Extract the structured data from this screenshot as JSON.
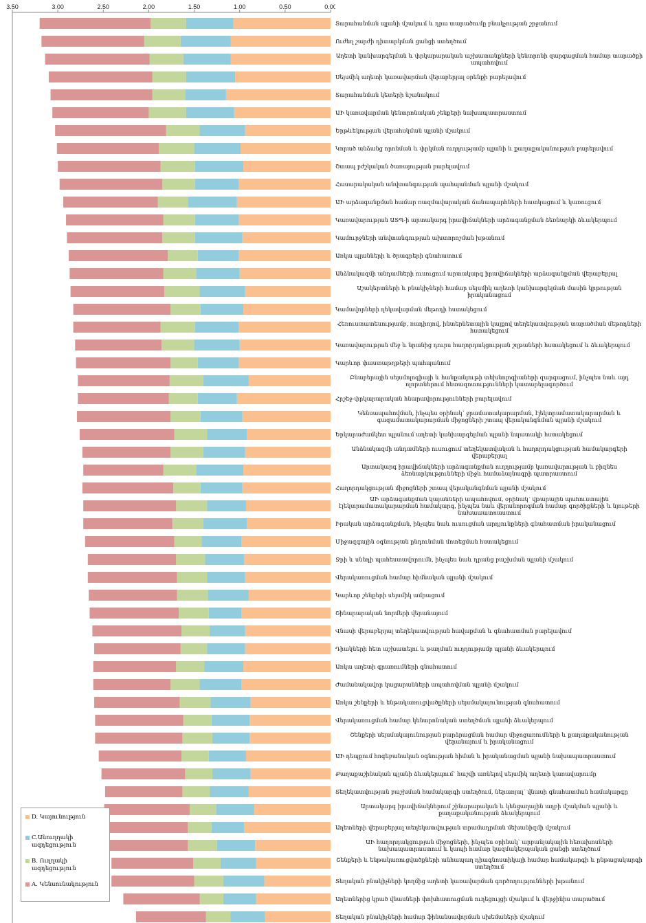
{
  "chart_data": {
    "type": "stacked-barh",
    "categories": [
      "Տարահանման պլանի մշակում և դրա տարածումը բնակչության շրջանում",
      "Ուժեղ շարժի դիտարկման ցանցի ստեղծում",
      "Աղետի կանխարգելման և փրկարարական աշխատանքների կենտրոնի զարգացման համար տարածքի ապահովում",
      "Սեյսմիկ աղետի կառավարման վերաբերյալ օրենքի բարելավում",
      "Տարահանման կետերի նշանակում",
      "ԱԻ կառավարման կենտրոնական շենքերի նախապատրաստում",
      "Երթևեկության վերահսկման պլանի մշակում",
      "Կորած անձանց որոնման և փրկման ուղղությամբ պլանի և քաղաքականության բարելավում",
      "Շտապ բժշկական ծառայության բարելավում",
      "Հասարակական անվտանգության պահպանման պլանի մշակում",
      "ԱԻ արձագանքման համար ռազմավարական ճանապարհների հատկացում և կառուցում",
      "Կառավարության ԱՏՊ-ի արտակարգ իրավիճակների արձագանքման ձեռնարկի ձևակերպում",
      "Կամուրջների անվտանգության ախտորոշման խթանում",
      "Առկա պլանների և ծրագրերի գնահատում",
      "Անձնակազմի անդամների ուսուցում արտակարգ իրավիճակների արձագանքման վերաբերյալ",
      "Աշակերտների և բնակիչների համար սեյսմիկ աղետի կանխարգելման մասին կրթության իրականացում",
      "Կամավորների ղեկավարման մեթոդի հստակեցում",
      "Հեռուստատեսությամբ, ռադիոյով, ինտերնետային կայքով տեղեկատվության տարածման մեթոդների հստակեցում",
      "Կառավարության մեջ և նրանից դուրս հաղորդակցության շղթաների հստակեցում և ձևակերպում",
      "Կարևոր փաստաթղթերի պահպանում",
      "Բնաբերային սեյսմոլոգիայի և հանքանյութի տեխնոլոգիաների զարգացում, ինչպես նաև այդ ոլորտներում հետազոտությունների կատարելագործում",
      "Հրշեջ-փրկարարական հնարավորությունների բարելավում",
      "Կենսապահովման, ինչպես օրինակ՝ ջրամատակարարման, էլեկտրամատակարարման և գազամատակարարման միջոցների շտապ վերականգնման պլանի մշակում",
      "Երկարաժամկետ պլանում աղետի կանխարգելման պլանի նպատակի հստակեցում",
      "Անձնակազմի անդամների ուսուցում տեղեկատվական և հաղորդակցության համակարգերի վերաբերյալ",
      "Արտակարգ իրավիճակների արձագանքման ուղղությամբ կառավարության և բիզնես ձեռնարկությունների միջև համաձայնագրի պատրաստում",
      "Հաղորդակցության միջոցների շտապ վերականգնման պլանի մշակում",
      "ԱԻ արձագանքման կայանների ապահովում, օրինակ՝ վթարային պահուստային էլեկտրամատակարարման համակարգ, ինչպես նաև վերանորոգման համար գործիքների և նյութերի նախապատրաստում",
      "Իրական արձագանքման, ինչպես նաև ուսուցման արդյունքների գնահատման իրականացում",
      "Միջազգային օգնության ընդունման մոտեցման հստակեցում",
      "Ջրի և սննդի պահեստավորումն, ինչպես նաև դրանց բաշխման պլանի մշակում",
      "Վերակառուցման համար հիմնական պլանի մշակում",
      "Կարևոր շենքերի սեյսմիկ ամրացում",
      "Շինարարական նորմերի վերանայում",
      "Վնասի վերաբերյալ տեղեկատվության հավաքման և գնահատման բարելավում",
      "Դիակների հետ աշխատելու և թաղման ուղղությամբ պլանի ձևակերպում",
      "Առկա աղետի գրառումների գնահատում",
      "Ժամանակավոր կացարանների ապահովման պլանի մշակում",
      "Առկա շենքերի և ենթակառուցվածքների սեյսմակայունության գնահատում",
      "Վերակառուցման համար կենտրոնական ստեղծման պլանի ձևակերպում",
      "Շենքերի սեյսմակայունության բարձրացման համար միջոցառումների և քաղաքականության վերանայում և իրականացում",
      "ԱԻ դեպքում հոգեբանական օգնության հիման և իրականացման պլանի նախապատրաստում",
      "Քաղաքաշինական պլանի ձևակերպում՝ հաշվի առնելով սեյսմիկ աղետի կառավարումը",
      "Տեղեկատվության բաշխման համակարգի ստեղծում, ներառյալ՝ վնասի գնահատման համակարգը",
      "Արտակարգ իրավիճակներում շինարարական և կենցաղային աղբի մշակման պլանի և քաղաքականության ձևակերպում",
      "Աղետների վերաբերյալ տեղեկատվության տրամադրման մեխանիզմի մշակում",
      "ԱԻ հաղորդակցության միջոցների, ինչպես օրինակ՝ արբանյակային հեռախոսների նախապատրաստում և կապի համար կազմակերպական ցանցի ստեղծում",
      "Շենքերի և ենթակառուցվածքների անհապաղ դիագնոստիկայի համար համակարգի և ընթացակարգի ստեղծում",
      "Տեղական բնակիչների կողմից աղետի կառավարման գործողությունների խթանում",
      "Աղետներից կրած վնասների փոխհատուցման ուղեցույցի մշակում և վերջինիս տարածում",
      "Տեղական բնակիչների համար ֆինանսավորման սխեմաների մշակում"
    ],
    "series": [
      {
        "name": "D. Կայունություն",
        "color": "#fac090",
        "values": [
          1.07,
          1.1,
          1.1,
          1.05,
          1.15,
          1.06,
          0.94,
          0.99,
          0.96,
          1.01,
          1.03,
          1.01,
          0.97,
          1.01,
          1.0,
          0.94,
          0.96,
          1.01,
          1.0,
          1.01,
          0.9,
          1.03,
          0.97,
          0.92,
          0.94,
          0.96,
          0.97,
          0.93,
          0.92,
          0.98,
          0.95,
          0.94,
          0.9,
          0.98,
          0.94,
          0.94,
          0.96,
          0.98,
          0.88,
          0.89,
          0.89,
          0.93,
          0.88,
          0.9,
          0.84,
          0.95,
          0.83,
          0.82,
          0.73,
          0.82,
          0.72
        ]
      },
      {
        "name": "C.Անուղղակի ազդեցություն",
        "color": "#93cddd",
        "values": [
          0.52,
          0.55,
          0.52,
          0.54,
          0.45,
          0.53,
          0.5,
          0.51,
          0.53,
          0.48,
          0.54,
          0.48,
          0.52,
          0.45,
          0.48,
          0.5,
          0.47,
          0.48,
          0.5,
          0.45,
          0.5,
          0.43,
          0.46,
          0.44,
          0.46,
          0.52,
          0.46,
          0.43,
          0.48,
          0.44,
          0.43,
          0.42,
          0.45,
          0.36,
          0.39,
          0.42,
          0.43,
          0.46,
          0.44,
          0.42,
          0.41,
          0.41,
          0.42,
          0.43,
          0.42,
          0.36,
          0.42,
          0.39,
          0.45,
          0.36,
          0.38
        ]
      },
      {
        "name": "B. Ուղղակի ազդեցություն",
        "color": "#c3d69b",
        "values": [
          0.39,
          0.4,
          0.37,
          0.37,
          0.36,
          0.41,
          0.37,
          0.39,
          0.38,
          0.36,
          0.33,
          0.35,
          0.36,
          0.33,
          0.36,
          0.39,
          0.33,
          0.38,
          0.36,
          0.3,
          0.37,
          0.32,
          0.33,
          0.36,
          0.36,
          0.36,
          0.3,
          0.34,
          0.34,
          0.3,
          0.32,
          0.33,
          0.34,
          0.33,
          0.31,
          0.29,
          0.31,
          0.32,
          0.34,
          0.31,
          0.33,
          0.3,
          0.3,
          0.3,
          0.29,
          0.26,
          0.32,
          0.3,
          0.32,
          0.26,
          0.27
        ]
      },
      {
        "name": "A. Կենսունակություն",
        "color": "#d99694",
        "values": [
          1.22,
          1.13,
          1.15,
          1.14,
          1.12,
          1.06,
          1.22,
          1.12,
          1.13,
          1.13,
          1.04,
          1.07,
          1.05,
          1.09,
          1.03,
          1.03,
          1.07,
          0.96,
          0.95,
          1.04,
          1.01,
          1.0,
          1.03,
          1.04,
          0.97,
          0.88,
          1.0,
          1.02,
          0.98,
          0.98,
          0.97,
          0.98,
          0.97,
          0.98,
          0.98,
          0.95,
          0.91,
          0.85,
          0.94,
          0.97,
          0.96,
          0.91,
          0.92,
          0.85,
          0.94,
          0.86,
          0.87,
          0.9,
          0.91,
          0.84,
          0.77
        ]
      }
    ],
    "xlim": [
      0,
      3.5
    ],
    "xticks": [
      {
        "value": 3.5,
        "label": "3.50"
      },
      {
        "value": 3,
        "label": "3.00"
      },
      {
        "value": 2.5,
        "label": "2.50"
      },
      {
        "value": 2,
        "label": "2.00"
      },
      {
        "value": 1.5,
        "label": "1.50"
      },
      {
        "value": 1,
        "label": "1.00"
      },
      {
        "value": 0.5,
        "label": "0.50"
      },
      {
        "value": 0,
        "label": "0.00"
      }
    ],
    "x_reversed": true
  }
}
